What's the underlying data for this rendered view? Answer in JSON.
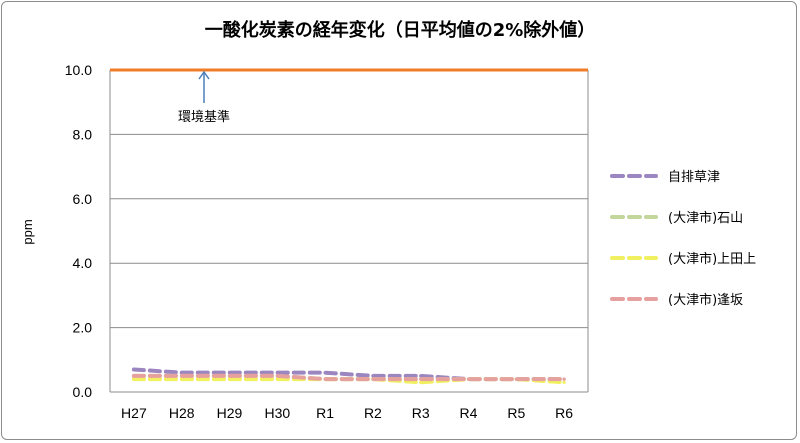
{
  "chart_data": {
    "type": "line",
    "title": "一酸化炭素の経年変化（日平均値の2%除外値）",
    "xlabel": "",
    "ylabel": "ppm",
    "categories": [
      "H27",
      "H28",
      "H29",
      "H30",
      "R1",
      "R2",
      "R3",
      "R4",
      "R5",
      "R6"
    ],
    "ylim": [
      0,
      10
    ],
    "yticks": [
      "0.0",
      "2.0",
      "4.0",
      "6.0",
      "8.0",
      "10.0"
    ],
    "grid": true,
    "legend_position": "right",
    "series": [
      {
        "name": "自排草津",
        "color": "#9b86c0",
        "values": [
          0.7,
          0.6,
          0.6,
          0.6,
          0.6,
          0.5,
          0.5,
          0.4,
          0.4,
          0.4
        ]
      },
      {
        "name": "(大津市)石山",
        "color": "#c3d69b",
        "values": [
          0.5,
          0.5,
          0.5,
          0.5,
          0.4,
          0.4,
          0.4,
          0.4,
          0.4,
          0.4
        ]
      },
      {
        "name": "(大津市)上田上",
        "color": "#f0f060",
        "values": [
          0.4,
          0.4,
          0.4,
          0.4,
          0.4,
          0.4,
          0.3,
          0.4,
          0.4,
          0.3
        ]
      },
      {
        "name": "(大津市)逢坂",
        "color": "#e6a09e",
        "values": [
          0.5,
          0.5,
          0.5,
          0.5,
          0.4,
          0.4,
          0.4,
          0.4,
          0.4,
          0.4
        ]
      }
    ],
    "standard_line": {
      "value": 10.0,
      "color": "#f07c28",
      "label": "環境基準"
    }
  }
}
